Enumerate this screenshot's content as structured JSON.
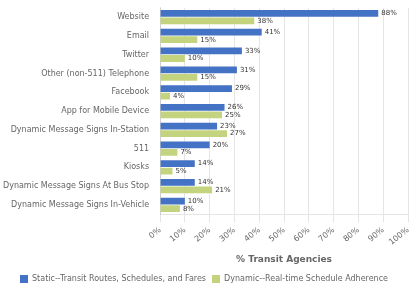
{
  "chart_data": {
    "type": "bar",
    "orientation": "horizontal",
    "categories": [
      "Dynamic Message Signs In-Vehicle",
      "Dynamic Message Signs At Bus Stop",
      "Kiosks",
      "511",
      "Dynamic Message Signs In-Station",
      "App for Mobile Device",
      "Facebook",
      "Other (non-511) Telephone",
      "Twitter",
      "Email",
      "Website"
    ],
    "series": [
      {
        "name": "Static--Transit Routes, Schedules, and Fares",
        "color": "#4472C4",
        "values": [
          10,
          14,
          14,
          20,
          23,
          26,
          29,
          31,
          33,
          41,
          88
        ],
        "value_labels": [
          "10%",
          "14%",
          "14%",
          "20%",
          "23%",
          "26%",
          "29%",
          "31%",
          "33%",
          "41%",
          "88%"
        ]
      },
      {
        "name": "Dynamic--Real-time Schedule Adherence",
        "color": "#C4D47E",
        "values": [
          8,
          21,
          5,
          7,
          27,
          25,
          4,
          15,
          10,
          15,
          38
        ],
        "value_labels": [
          "8%",
          "21%",
          "5%",
          "7%",
          "27%",
          "25%",
          "4%",
          "15%",
          "10%",
          "15%",
          "38%"
        ]
      }
    ],
    "xlabel": "% Transit Agencies",
    "xlim": [
      0,
      100
    ],
    "xticks": [
      {
        "value": 0,
        "label": "0%"
      },
      {
        "value": 10,
        "label": "10%"
      },
      {
        "value": 20,
        "label": "20%"
      },
      {
        "value": 30,
        "label": "30%"
      },
      {
        "value": 40,
        "label": "40%"
      },
      {
        "value": 50,
        "label": "50%"
      },
      {
        "value": 60,
        "label": "60%"
      },
      {
        "value": 70,
        "label": "70%"
      },
      {
        "value": 80,
        "label": "80%"
      },
      {
        "value": 90,
        "label": "90%"
      },
      {
        "value": 100,
        "label": "100%"
      }
    ],
    "grid": true,
    "legend": "bottom",
    "data_labels": true
  }
}
